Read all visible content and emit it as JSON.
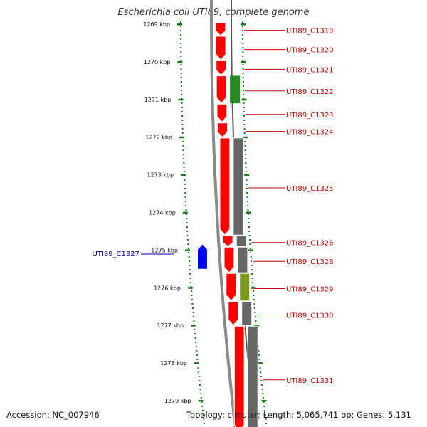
{
  "title": "Escherichia coli UTI89, complete genome",
  "accession": "Accession: NC_007946",
  "summary": "Topology: circular; Length: 5,065,741 bp; Genes: 5,131",
  "colors": {
    "forward_gene": "#ff0000",
    "reverse_gene": "#0000ff",
    "cog_a": "#228b22",
    "cog_b": "#7a9a1a",
    "cog_default": "#666666",
    "backbone": "#888888",
    "ruler": "#1a7a1a",
    "label_forward": "#cc0000",
    "label_reverse": "#0000aa"
  },
  "ruler": {
    "labels": [
      "1269 kbp",
      "1270 kbp",
      "1271 kbp",
      "1272 kbp",
      "1273 kbp",
      "1274 kbp",
      "1275 kbp",
      "1276 kbp",
      "1277 kbp",
      "1278 kbp",
      "1279 kbp"
    ]
  },
  "genes": [
    {
      "label": "UTI89_C1319",
      "strand": "+",
      "start_kbp": 1268.95,
      "end_kbp": 1269.3
    },
    {
      "label": "UTI89_C1320",
      "strand": "+",
      "start_kbp": 1269.32,
      "end_kbp": 1269.95
    },
    {
      "label": "UTI89_C1321",
      "strand": "+",
      "start_kbp": 1269.97,
      "end_kbp": 1270.35
    },
    {
      "label": "UTI89_C1322",
      "strand": "+",
      "start_kbp": 1270.37,
      "end_kbp": 1271.1,
      "cog": "cog_a"
    },
    {
      "label": "UTI89_C1323",
      "strand": "+",
      "start_kbp": 1271.12,
      "end_kbp": 1271.6
    },
    {
      "label": "UTI89_C1324",
      "strand": "+",
      "start_kbp": 1271.62,
      "end_kbp": 1272.0
    },
    {
      "label": "UTI89_C1325",
      "strand": "+",
      "start_kbp": 1272.02,
      "end_kbp": 1274.6
    },
    {
      "label": "UTI89_C1326",
      "strand": "+",
      "start_kbp": 1274.62,
      "end_kbp": 1274.9
    },
    {
      "label": "UTI89_C1328",
      "strand": "+",
      "start_kbp": 1274.92,
      "end_kbp": 1275.6
    },
    {
      "label": "UTI89_C1329",
      "strand": "+",
      "start_kbp": 1275.62,
      "end_kbp": 1276.35,
      "cog": "cog_b"
    },
    {
      "label": "UTI89_C1330",
      "strand": "+",
      "start_kbp": 1276.37,
      "end_kbp": 1277.0
    },
    {
      "label": "UTI89_C1331",
      "strand": "+",
      "start_kbp": 1277.02,
      "end_kbp": 1279.8
    },
    {
      "label": "UTI89_C1327",
      "strand": "-",
      "start_kbp": 1274.85,
      "end_kbp": 1275.5
    }
  ]
}
